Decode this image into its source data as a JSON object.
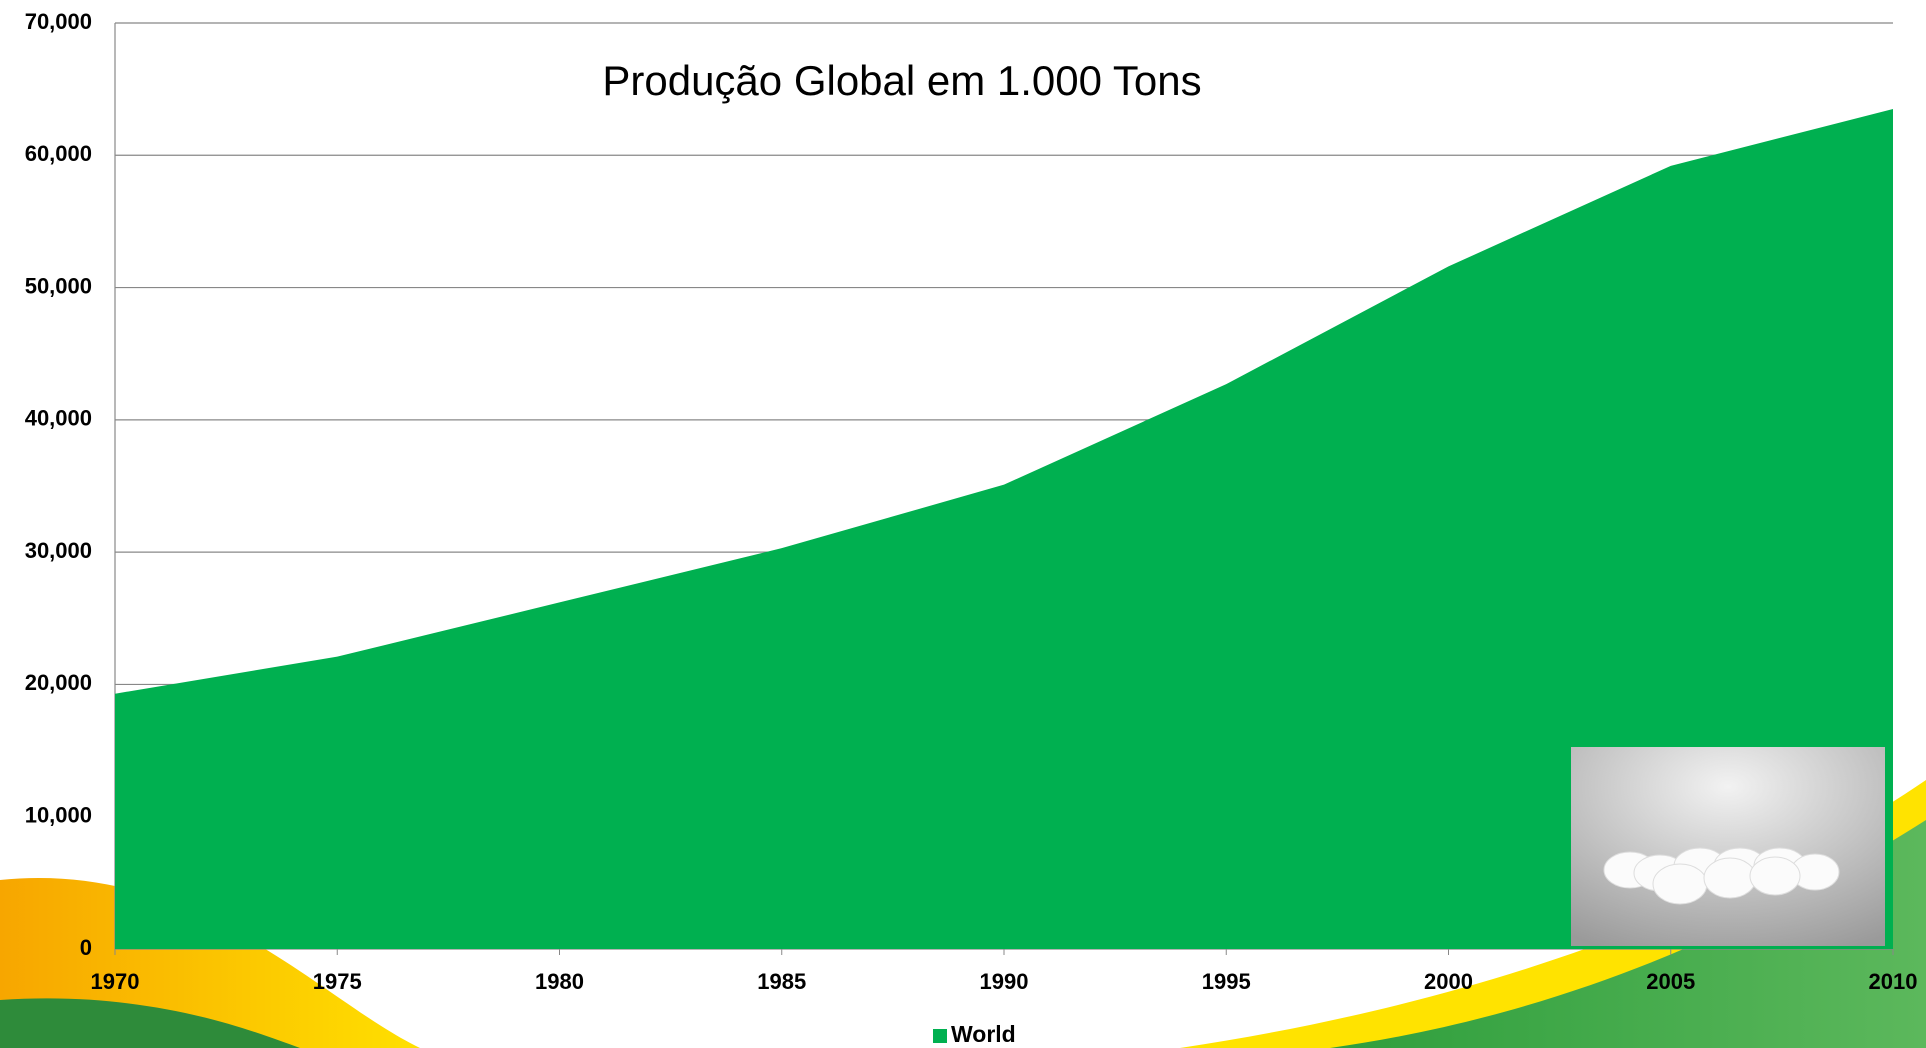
{
  "chart_data": {
    "type": "area",
    "title": "Produção Global em 1.000 Tons",
    "x": [
      1970,
      1975,
      1980,
      1985,
      1990,
      1995,
      2000,
      2005,
      2010
    ],
    "series": [
      {
        "name": "World",
        "color": "#00b050",
        "values": [
          19300,
          22100,
          26200,
          30300,
          35100,
          42700,
          51600,
          59200,
          63500
        ]
      }
    ],
    "xlim": [
      1970,
      2010
    ],
    "xticks": [
      1970,
      1975,
      1980,
      1985,
      1990,
      1995,
      2000,
      2005,
      2010
    ],
    "ylim": [
      0,
      70000
    ],
    "yticks": [
      0,
      {
        "value": 10000,
        "label": "10,000"
      },
      {
        "value": 20000,
        "label": "20,000"
      },
      {
        "value": 30000,
        "label": "30,000"
      },
      {
        "value": 40000,
        "label": "40,000"
      },
      {
        "value": 50000,
        "label": "50,000"
      },
      {
        "value": 60000,
        "label": "60,000"
      },
      {
        "value": 70000,
        "label": "70,000"
      }
    ],
    "grid": true,
    "legend": "bottom"
  }
}
